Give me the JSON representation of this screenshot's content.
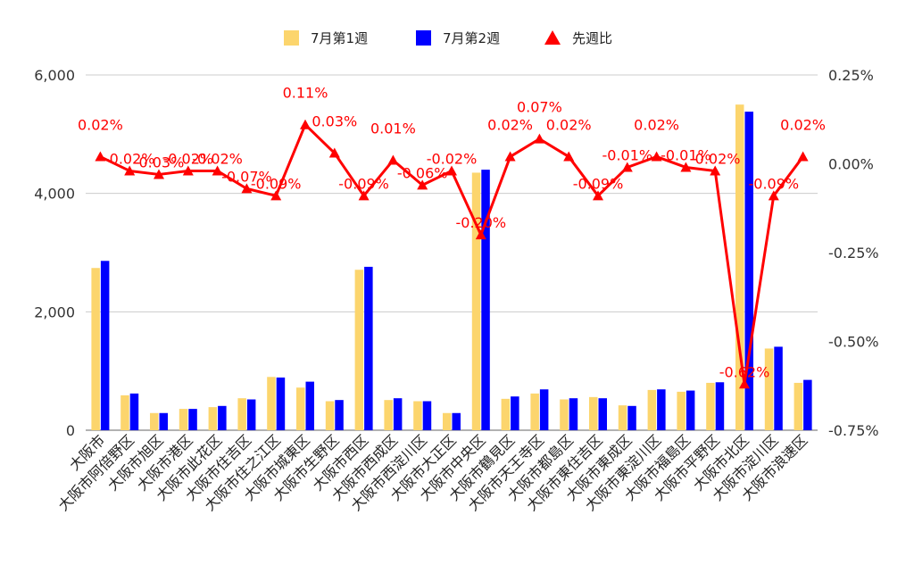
{
  "chart_data": {
    "type": "bar",
    "categories": [
      "大阪市",
      "大阪市阿倍野区",
      "大阪市旭区",
      "大阪市港区",
      "大阪市此花区",
      "大阪市住吉区",
      "大阪市住之江区",
      "大阪市城東区",
      "大阪市生野区",
      "大阪市西区",
      "大阪市西成区",
      "大阪市西淀川区",
      "大阪市大正区",
      "大阪市中央区",
      "大阪市鶴見区",
      "大阪市天王寺区",
      "大阪市都島区",
      "大阪市東住吉区",
      "大阪市東成区",
      "大阪市東淀川区",
      "大阪市福島区",
      "大阪市平野区",
      "大阪市北区",
      "大阪市淀川区",
      "大阪市浪速区"
    ],
    "series": [
      {
        "name": "7月第1週",
        "axis": "left",
        "kind": "bar",
        "color": "#fcd56d",
        "values": [
          2740,
          590,
          290,
          360,
          390,
          540,
          900,
          720,
          490,
          2710,
          510,
          490,
          290,
          4350,
          530,
          620,
          520,
          560,
          420,
          680,
          650,
          800,
          5500,
          1380,
          800
        ]
      },
      {
        "name": "7月第2週",
        "axis": "right-bar",
        "kind": "bar",
        "color": "#0000ff",
        "values": [
          2860,
          620,
          290,
          360,
          410,
          520,
          890,
          820,
          510,
          2760,
          540,
          490,
          290,
          4400,
          570,
          690,
          540,
          540,
          410,
          690,
          670,
          810,
          5380,
          1410,
          850
        ]
      },
      {
        "name": "先週比",
        "axis": "right",
        "kind": "line",
        "color": "#ff0000",
        "values": [
          0.0002,
          -0.0002,
          -0.0003,
          -0.0002,
          -0.0002,
          -0.0007,
          -0.0009,
          0.0011,
          0.0003,
          -0.0009,
          0.0001,
          -0.0006,
          -0.0002,
          -0.002,
          0.0002,
          0.0007,
          0.0002,
          -0.0009,
          -0.0001,
          0.0002,
          -0.0001,
          -0.0002,
          -0.0062,
          -0.0009,
          0.0002
        ],
        "labels": [
          "0.02%",
          "-0.02%",
          "-0.03%",
          "-0.02%",
          "-0.02%",
          "-0.07%",
          "-0.09%",
          "0.11%",
          "0.03%",
          "-0.09%",
          "0.01%",
          "-0.06%",
          "-0.02%",
          "-0.20%",
          "0.02%",
          "0.07%",
          "0.02%",
          "-0.09%",
          "-0.01%",
          "0.02%",
          "-0.01%",
          "-0.02%",
          "-0.62%",
          "-0.09%",
          "0.02%"
        ]
      }
    ],
    "y_left": {
      "min": 0,
      "max": 6000,
      "ticks": [
        0,
        2000,
        4000,
        6000
      ],
      "tick_labels": [
        "0",
        "2,000",
        "4,000",
        "6,000"
      ]
    },
    "y_right": {
      "min": -0.0075,
      "max": 0.0025,
      "ticks": [
        -0.0075,
        -0.005,
        -0.0025,
        0,
        0.0025
      ],
      "tick_labels": [
        "-0.75%",
        "-0.50%",
        "-0.25%",
        "0.00%",
        "0.25%"
      ]
    },
    "grid": true,
    "legend": "top-center",
    "title": "",
    "xlabel": "",
    "ylabel": ""
  }
}
